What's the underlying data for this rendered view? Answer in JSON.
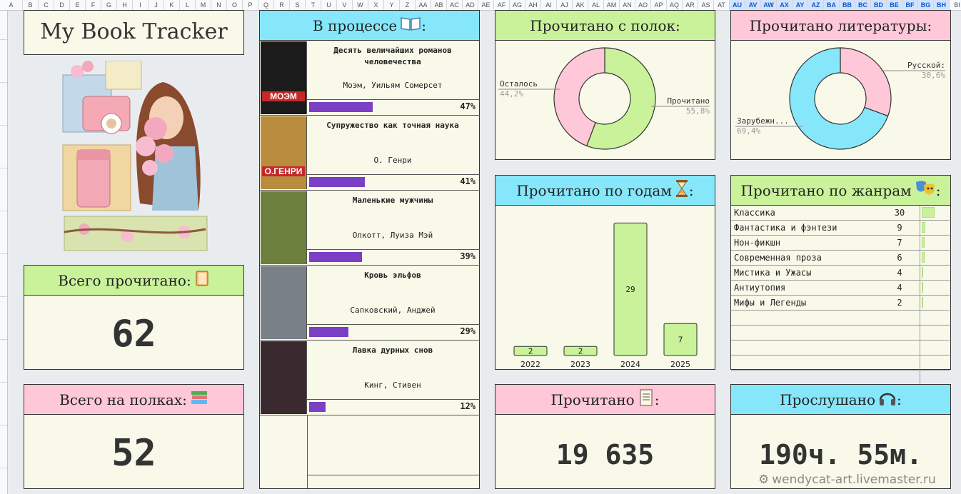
{
  "sheet_columns": [
    "A",
    "B",
    "C",
    "D",
    "E",
    "F",
    "G",
    "H",
    "I",
    "J",
    "K",
    "L",
    "M",
    "N",
    "O",
    "P",
    "Q",
    "R",
    "S",
    "T",
    "U",
    "V",
    "W",
    "X",
    "Y",
    "Z",
    "AA",
    "AB",
    "AC",
    "AD",
    "AE",
    "AF",
    "AG",
    "AH",
    "AI",
    "AJ",
    "AK",
    "AL",
    "AM",
    "AN",
    "AO",
    "AP",
    "AQ",
    "AR",
    "AS",
    "AT",
    "AU",
    "AV",
    "AW",
    "AX",
    "AY",
    "AZ",
    "BA",
    "BB",
    "BC",
    "BD",
    "BE",
    "BF",
    "BG",
    "BH",
    "BI"
  ],
  "title": "My Book Tracker",
  "total_read": {
    "label": "Всего прочитано",
    "value": "62"
  },
  "total_shelves": {
    "label": "Всего на полках",
    "value": "52"
  },
  "in_progress": {
    "label": "В процессе",
    "books": [
      {
        "title": "Десять величайших романов человечества",
        "author": "Моэм, Уильям Сомерсет",
        "progress": 0.47,
        "pct": "47%",
        "cover_color": "#1b1b1b",
        "cover_text": "МОЭМ"
      },
      {
        "title": "Супружество как точная наука",
        "author": "О. Генри",
        "progress": 0.41,
        "pct": "41%",
        "cover_color": "#b88c3c",
        "cover_text": "О.ГЕНРИ"
      },
      {
        "title": "Маленькие мужчины",
        "author": "Олкотт, Луиза Мэй",
        "progress": 0.39,
        "pct": "39%",
        "cover_color": "#6c7f3c",
        "cover_text": ""
      },
      {
        "title": "Кровь эльфов",
        "author": "Сапковский, Анджей",
        "progress": 0.29,
        "pct": "29%",
        "cover_color": "#7a8088",
        "cover_text": ""
      },
      {
        "title": "Лавка дурных снов",
        "author": "Кинг, Стивен",
        "progress": 0.12,
        "pct": "12%",
        "cover_color": "#3a2a30",
        "cover_text": ""
      }
    ]
  },
  "shelves_chart": {
    "label": "Прочитано с полок:",
    "chart_data": {
      "type": "pie",
      "categories": [
        "Прочитано",
        "Осталось"
      ],
      "values": [
        55.8,
        44.2
      ],
      "value_labels": [
        "55,8%",
        "44,2%"
      ],
      "colors": [
        "#c9f29a",
        "#ffc8d9"
      ]
    }
  },
  "literature_chart": {
    "label": "Прочитано литературы:",
    "chart_data": {
      "type": "pie",
      "categories": [
        "Русской:",
        "Зарубежн..."
      ],
      "values": [
        30.6,
        69.4
      ],
      "value_labels": [
        "30,6%",
        "69,4%"
      ],
      "colors": [
        "#ffc8d9",
        "#86e7fb"
      ]
    }
  },
  "years_chart": {
    "label": "Прочитано по годам",
    "chart_data": {
      "type": "bar",
      "categories": [
        "2022",
        "2023",
        "2024",
        "2025"
      ],
      "values": [
        2,
        2,
        29,
        7
      ],
      "ylim": [
        0,
        30
      ],
      "color": "#c9f29a"
    }
  },
  "genres": {
    "label": "Прочитано по жанрам",
    "max": 30,
    "items": [
      {
        "name": "Классика",
        "value": 30
      },
      {
        "name": "Фантастика и фэнтези",
        "value": 9
      },
      {
        "name": "Нон-фикшн",
        "value": 7
      },
      {
        "name": "Современная проза",
        "value": 6
      },
      {
        "name": "Мистика и Ужасы",
        "value": 4
      },
      {
        "name": "Антиутопия",
        "value": 4
      },
      {
        "name": "Мифы и Легенды",
        "value": 2
      }
    ]
  },
  "pages_read": {
    "label": "Прочитано",
    "value": "19 635"
  },
  "listened": {
    "label": "Прослушано",
    "value": "190ч. 55м."
  },
  "watermark": "wendycat-art.livemaster.ru",
  "colors": {
    "green": "#c9f29a",
    "pink": "#ffc8d9",
    "cyan": "#86e7fb",
    "panel": "#f9f9ea",
    "progress": "#7b3fc6"
  }
}
